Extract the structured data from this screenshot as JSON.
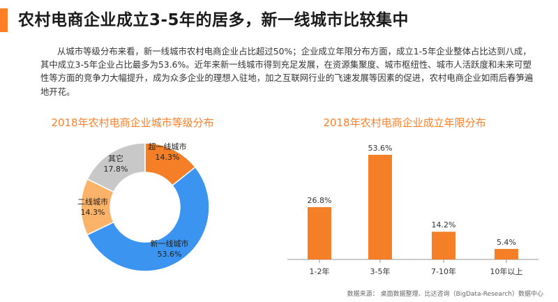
{
  "header": {
    "title": "农村电商企业成立3-5年的居多，新一线城市比较集中"
  },
  "intro": {
    "text": "从城市等级分布来看，新一线城市农村电商企业占比超过50%；企业成立年限分布方面，成立1-5年企业整体占比达到八成，其中成立3-5年企业占比最多为53.6%。近年来新一线城市得到充足发展，在资源集聚度、城市枢纽性、城市人活跃度和未来可塑性等方面的竞争力大幅提升，成为众多企业的理想入驻地，加之互联网行业的飞速发展等因素的促进，农村电商企业如雨后春笋遍地开花。"
  },
  "colors": {
    "accent": "#ff7f27",
    "orange": "#f47f26",
    "blue": "#3a94f0",
    "light_orange": "#fbb36a",
    "gray": "#c8c8c8",
    "axis": "#999999"
  },
  "chart_data": [
    {
      "type": "pie",
      "title": "2018年农村电商企业城市等级分布",
      "slices": [
        {
          "name": "超一线城市",
          "value": 14.3,
          "label": "14.3%",
          "color": "#f47f26"
        },
        {
          "name": "新一线城市",
          "value": 53.6,
          "label": "53.6%",
          "color": "#3a94f0"
        },
        {
          "name": "二线城市",
          "value": 14.3,
          "label": "14.3%",
          "color": "#fbb36a"
        },
        {
          "name": "其它",
          "value": 17.8,
          "label": "17.8%",
          "color": "#c8c8c8"
        }
      ]
    },
    {
      "type": "bar",
      "title": "2018年农村电商企业成立年限分布",
      "categories": [
        "1-2年",
        "3-5年",
        "7-10年",
        "10年以上"
      ],
      "values": [
        26.8,
        53.6,
        14.2,
        5.4
      ],
      "value_labels": [
        "26.8%",
        "53.6%",
        "14.2%",
        "5.4%"
      ],
      "ylim": [
        0,
        60
      ],
      "color": "#f47f26"
    }
  ],
  "footer": {
    "source_label": "数据来源：",
    "source_text": "桌面数据整理、比达咨询（BigData-Research）数据中心"
  }
}
